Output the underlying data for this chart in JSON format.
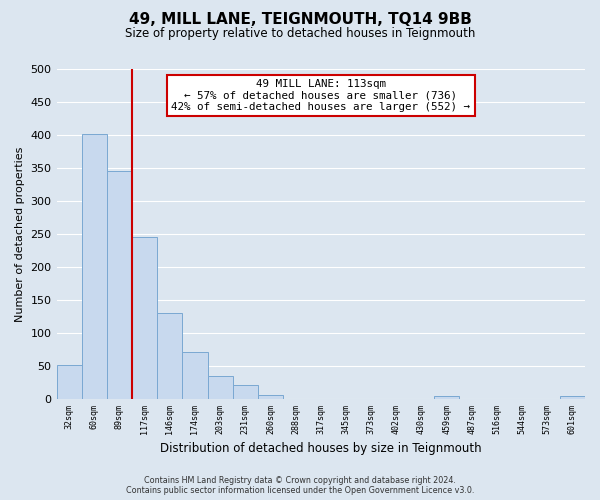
{
  "title": "49, MILL LANE, TEIGNMOUTH, TQ14 9BB",
  "subtitle": "Size of property relative to detached houses in Teignmouth",
  "xlabel": "Distribution of detached houses by size in Teignmouth",
  "ylabel": "Number of detached properties",
  "bin_labels": [
    "32sqm",
    "60sqm",
    "89sqm",
    "117sqm",
    "146sqm",
    "174sqm",
    "203sqm",
    "231sqm",
    "260sqm",
    "288sqm",
    "317sqm",
    "345sqm",
    "373sqm",
    "402sqm",
    "430sqm",
    "459sqm",
    "487sqm",
    "516sqm",
    "544sqm",
    "573sqm",
    "601sqm"
  ],
  "bar_heights": [
    51,
    401,
    345,
    246,
    130,
    71,
    35,
    21,
    6,
    0,
    0,
    0,
    0,
    0,
    0,
    5,
    0,
    0,
    0,
    0,
    4
  ],
  "bar_color": "#c8d9ee",
  "bar_edge_color": "#7aa8d2",
  "vline_color": "#cc0000",
  "annotation_line1": "49 MILL LANE: 113sqm",
  "annotation_line2": "← 57% of detached houses are smaller (736)",
  "annotation_line3": "42% of semi-detached houses are larger (552) →",
  "annotation_box_color": "#ffffff",
  "annotation_box_edge": "#cc0000",
  "ylim": [
    0,
    500
  ],
  "yticks": [
    0,
    50,
    100,
    150,
    200,
    250,
    300,
    350,
    400,
    450,
    500
  ],
  "grid_color": "#ffffff",
  "bg_color": "#dce6f0",
  "footer_line1": "Contains HM Land Registry data © Crown copyright and database right 2024.",
  "footer_line2": "Contains public sector information licensed under the Open Government Licence v3.0."
}
